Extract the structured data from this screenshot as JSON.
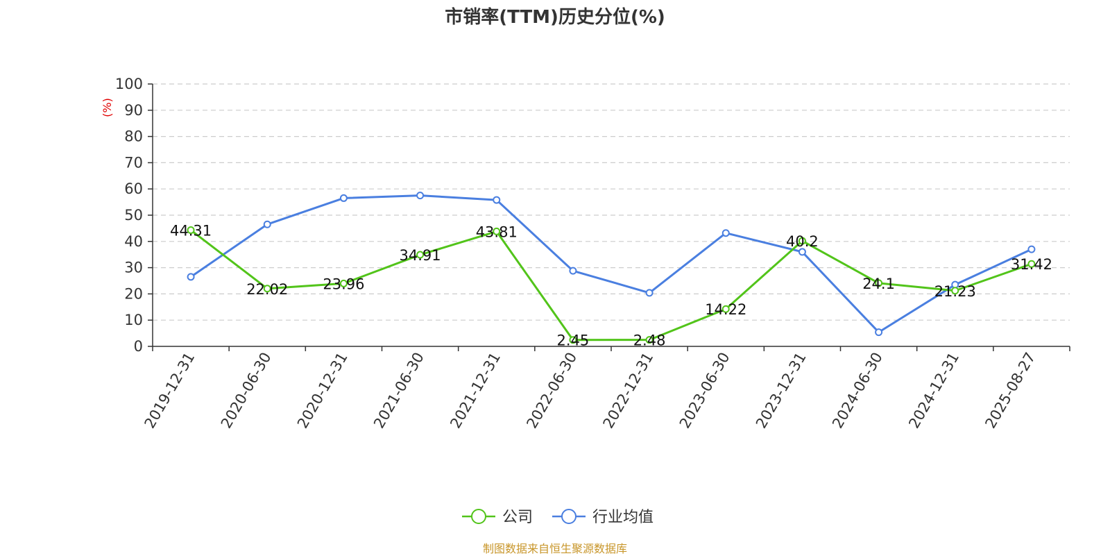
{
  "chart_data": {
    "type": "line",
    "title": "市销率(TTM)历史分位(%)",
    "ylabel": "(%)",
    "ylim": [
      0,
      100
    ],
    "yticks": [
      0,
      10,
      20,
      30,
      40,
      50,
      60,
      70,
      80,
      90,
      100
    ],
    "grid": true,
    "legend_position": "bottom-center",
    "categories": [
      "2019-12-31",
      "2020-06-30",
      "2020-12-31",
      "2021-06-30",
      "2021-12-31",
      "2022-06-30",
      "2022-12-31",
      "2023-06-30",
      "2023-12-31",
      "2024-06-30",
      "2024-12-31",
      "2025-08-27"
    ],
    "series": [
      {
        "name": "公司",
        "color": "#52c41a",
        "values": [
          44.31,
          22.02,
          23.96,
          34.91,
          43.81,
          2.45,
          2.48,
          14.22,
          40.2,
          24.1,
          21.23,
          31.42
        ],
        "labels": [
          "44.31",
          "22.02",
          "23.96",
          "34.91",
          "43.81",
          "2.45",
          "2.48",
          "14.22",
          "40.2",
          "24.1",
          "21.23",
          "31.42"
        ]
      },
      {
        "name": "行业均值",
        "color": "#4a7fe0",
        "values": [
          26.5,
          46.5,
          56.5,
          57.5,
          55.8,
          28.8,
          20.4,
          43.2,
          36.0,
          5.4,
          23.5,
          37.0
        ]
      }
    ]
  },
  "source": {
    "text": "制图数据来自恒生聚源数据库",
    "color": "#c8962a"
  },
  "axis_label_color": "#e00000"
}
